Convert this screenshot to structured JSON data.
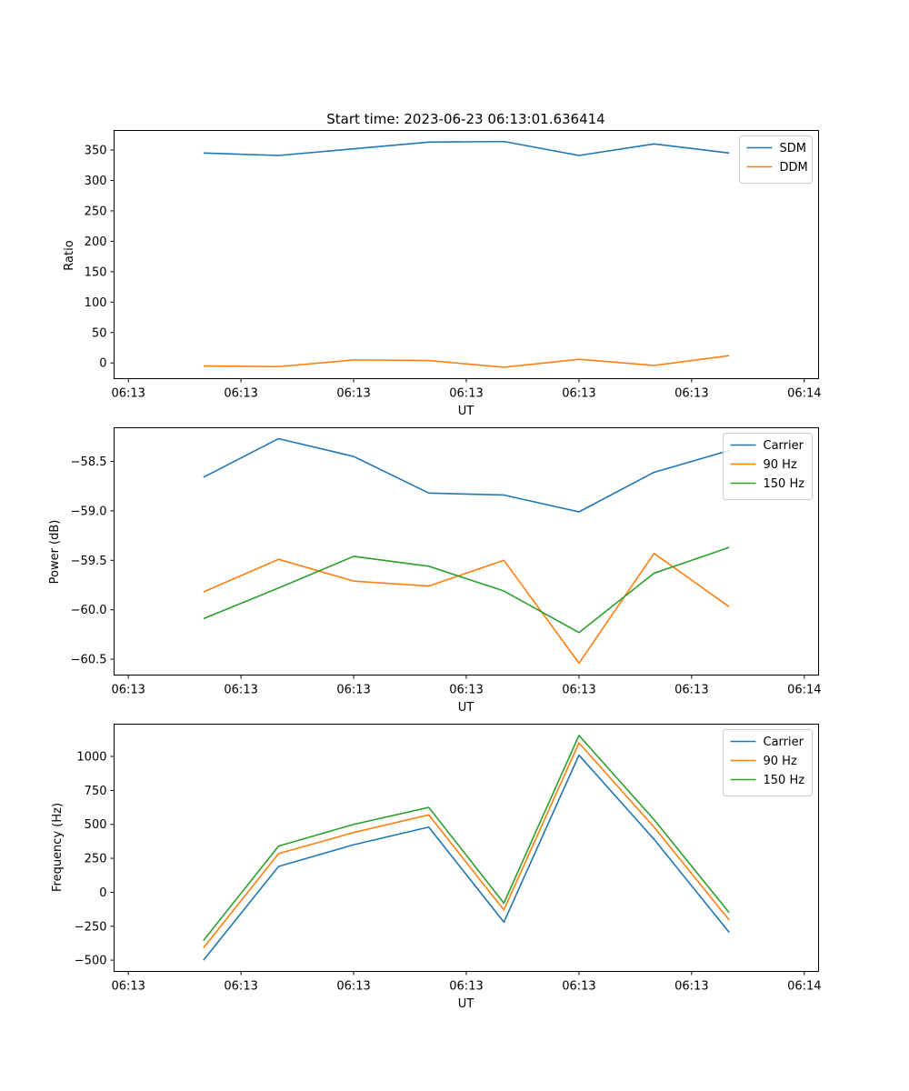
{
  "chart_data": [
    {
      "type": "line",
      "title": "Start time: 2023-06-23 06:13:01.636414",
      "xlabel": "UT",
      "ylabel": "Ratio",
      "xtick_labels": [
        "06:13",
        "06:13",
        "06:13",
        "06:13",
        "06:13",
        "06:13",
        "06:14"
      ],
      "xlim": [
        -0.19,
        9.19
      ],
      "x": [
        1,
        2,
        3,
        4,
        5,
        6,
        7,
        8
      ],
      "ylim": [
        -25.8,
        382.1
      ],
      "yticks": [
        0,
        50,
        100,
        150,
        200,
        250,
        300,
        350
      ],
      "grid": false,
      "legend_position": "top-right",
      "series": [
        {
          "name": "SDM",
          "color": "#1f77b4",
          "values": [
            345,
            341,
            352,
            363,
            364,
            341,
            360,
            345
          ]
        },
        {
          "name": "DDM",
          "color": "#ff7f0e",
          "values": [
            -5,
            -6,
            5,
            4,
            -7,
            6,
            -4,
            12
          ]
        }
      ]
    },
    {
      "type": "line",
      "title": "",
      "xlabel": "UT",
      "ylabel": "Power (dB)",
      "xtick_labels": [
        "06:13",
        "06:13",
        "06:13",
        "06:13",
        "06:13",
        "06:13",
        "06:14"
      ],
      "xlim": [
        -0.19,
        9.19
      ],
      "x": [
        1,
        2,
        3,
        4,
        5,
        6,
        7,
        8
      ],
      "ylim": [
        -60.66,
        -58.16
      ],
      "yticks": [
        -60.5,
        -60.0,
        -59.5,
        -59.0,
        -58.5
      ],
      "ytick_labels": [
        "−60.5",
        "−60.0",
        "−59.5",
        "−59.0",
        "−58.5"
      ],
      "grid": false,
      "legend_position": "top-right",
      "series": [
        {
          "name": "Carrier",
          "color": "#1f77b4",
          "values": [
            -58.66,
            -58.27,
            -58.45,
            -58.82,
            -58.84,
            -59.01,
            -58.61,
            -58.39
          ]
        },
        {
          "name": "90 Hz",
          "color": "#ff7f0e",
          "values": [
            -59.82,
            -59.49,
            -59.71,
            -59.76,
            -59.5,
            -60.54,
            -59.43,
            -59.97
          ]
        },
        {
          "name": "150 Hz",
          "color": "#2ca02c",
          "values": [
            -60.09,
            -59.78,
            -59.46,
            -59.56,
            -59.81,
            -60.23,
            -59.63,
            -59.37
          ]
        }
      ]
    },
    {
      "type": "line",
      "title": "",
      "xlabel": "UT",
      "ylabel": "Frequency (Hz)",
      "xtick_labels": [
        "06:13",
        "06:13",
        "06:13",
        "06:13",
        "06:13",
        "06:13",
        "06:14"
      ],
      "xlim": [
        -0.19,
        9.19
      ],
      "x": [
        1,
        2,
        3,
        4,
        5,
        6,
        7,
        8
      ],
      "ylim": [
        -583,
        1238
      ],
      "yticks": [
        -500,
        -250,
        0,
        250,
        500,
        750,
        1000
      ],
      "ytick_labels": [
        "−500",
        "−250",
        "0",
        "250",
        "500",
        "750",
        "1000"
      ],
      "grid": false,
      "legend_position": "top-right",
      "series": [
        {
          "name": "Carrier",
          "color": "#1f77b4",
          "values": [
            -500,
            190,
            350,
            480,
            -220,
            1010,
            390,
            -295
          ]
        },
        {
          "name": "90 Hz",
          "color": "#ff7f0e",
          "values": [
            -410,
            285,
            440,
            570,
            -130,
            1100,
            480,
            -205
          ]
        },
        {
          "name": "150 Hz",
          "color": "#2ca02c",
          "values": [
            -355,
            340,
            500,
            625,
            -80,
            1155,
            535,
            -150
          ]
        }
      ]
    }
  ]
}
